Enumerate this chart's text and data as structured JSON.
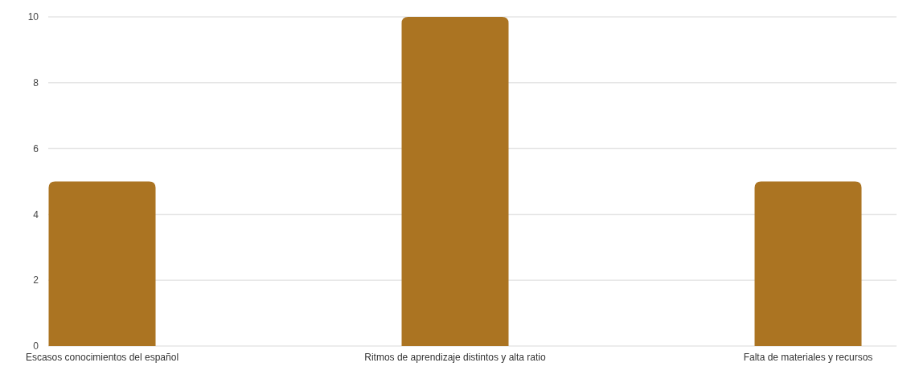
{
  "chart_data": {
    "type": "bar",
    "categories": [
      "Escasos conocimientos del español",
      "Ritmos de aprendizaje distintos y alta ratio",
      "Falta de materiales y recursos"
    ],
    "values": [
      5,
      10,
      5
    ],
    "color": "#ab7422",
    "ylim": [
      0,
      10
    ],
    "yticks": [
      0,
      2,
      4,
      6,
      8,
      10
    ],
    "grid": "y"
  }
}
